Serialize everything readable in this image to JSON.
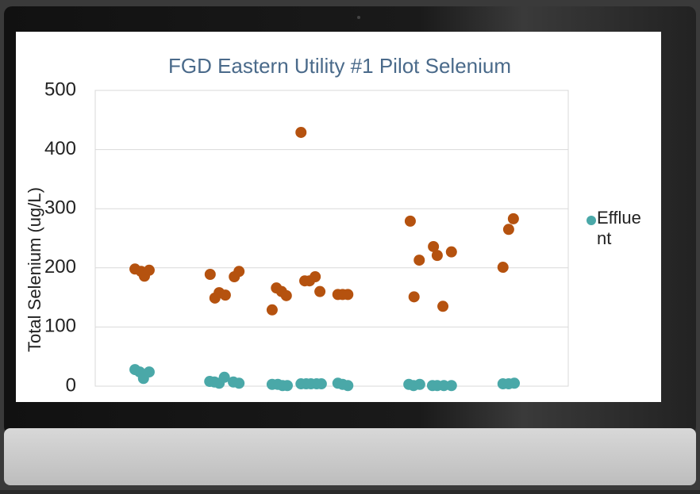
{
  "chart_data": {
    "type": "scatter",
    "title": "FGD Eastern Utility #1 Pilot Selenium",
    "y_label": "Total Selenium (ug/L)",
    "xlim": [
      0,
      100
    ],
    "ylim": [
      0,
      500
    ],
    "yticks": [
      0,
      100,
      200,
      300,
      400,
      500
    ],
    "grid": true,
    "legend": "right",
    "series": [
      {
        "color": "#b5520f",
        "x": [
          8.4,
          9.7,
          10.4,
          11.4,
          24.3,
          25.3,
          26.2,
          27.5,
          29.4,
          30.4,
          37.4,
          38.3,
          39.4,
          40.4,
          43.5,
          44.3,
          45.3,
          46.5,
          47.5,
          51.3,
          52.3,
          53.4,
          66.6,
          67.4,
          68.5,
          71.5,
          72.3,
          73.5,
          75.3,
          86.2,
          87.4,
          88.4
        ],
        "values": [
          198,
          194,
          186,
          196,
          189,
          149,
          158,
          154,
          185,
          194,
          129,
          166,
          160,
          153,
          429,
          178,
          178,
          185,
          160,
          155,
          155,
          155,
          279,
          151,
          213,
          236,
          221,
          135,
          227,
          201,
          265,
          283
        ]
      },
      {
        "name": "Effluent",
        "color": "#4aa8a8",
        "x": [
          8.4,
          9.4,
          10.2,
          11.4,
          24.2,
          25.2,
          26.2,
          27.3,
          29.2,
          30.4,
          37.4,
          38.6,
          39.6,
          40.6,
          43.5,
          44.6,
          45.6,
          46.8,
          47.8,
          51.3,
          52.3,
          53.4,
          66.3,
          67.3,
          68.6,
          71.3,
          72.3,
          73.7,
          75.3,
          86.2,
          87.4,
          88.6
        ],
        "values": [
          28,
          24,
          13,
          24,
          8,
          7,
          5,
          15,
          7,
          5,
          3,
          3,
          1,
          1,
          4,
          4,
          4,
          4,
          4,
          5,
          3,
          1,
          3,
          1,
          3,
          1,
          1,
          1,
          1,
          4,
          4,
          5
        ]
      }
    ]
  }
}
